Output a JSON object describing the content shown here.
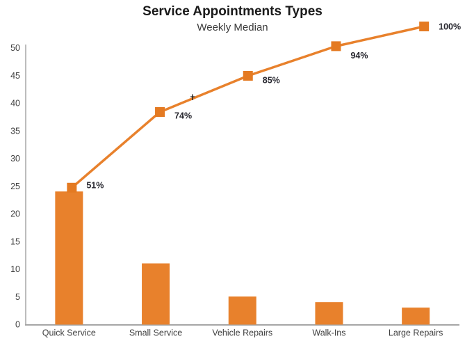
{
  "chart_data": {
    "type": "bar",
    "subtype": "pareto",
    "title": "Service Appointments Types",
    "subtitle": "Weekly Median",
    "categories": [
      "Quick Service",
      "Small Service",
      "Vehicle Repairs",
      "Walk-Ins",
      "Large Repairs"
    ],
    "series": [
      {
        "name": "weekly-median-count",
        "type": "bar",
        "values": [
          24,
          11,
          5,
          4,
          3
        ]
      },
      {
        "name": "cumulative-percent",
        "type": "line",
        "values_percent": [
          51,
          74,
          85,
          94,
          100
        ],
        "point_labels": [
          "51%",
          "74%",
          "85%",
          "94%",
          "100%"
        ]
      }
    ],
    "xlabel": "",
    "ylabel": "",
    "ylim": [
      0,
      50
    ],
    "y_ticks": [
      0,
      5,
      10,
      15,
      20,
      25,
      30,
      35,
      40,
      45,
      50
    ],
    "grid": false,
    "legend_position": "none",
    "colors": {
      "bar": "#E8812C",
      "line": "#E8812C",
      "marker": "#E47A22",
      "axis_line": "#A6A6A6",
      "tick_text": "#3F3F3F",
      "point_label_text": "#26262E",
      "title_text": "#1A1A1A",
      "subtitle_text": "#3A3A3A",
      "background": "#FFFFFF"
    },
    "annotations": {
      "cursor_artifact": "+"
    }
  }
}
